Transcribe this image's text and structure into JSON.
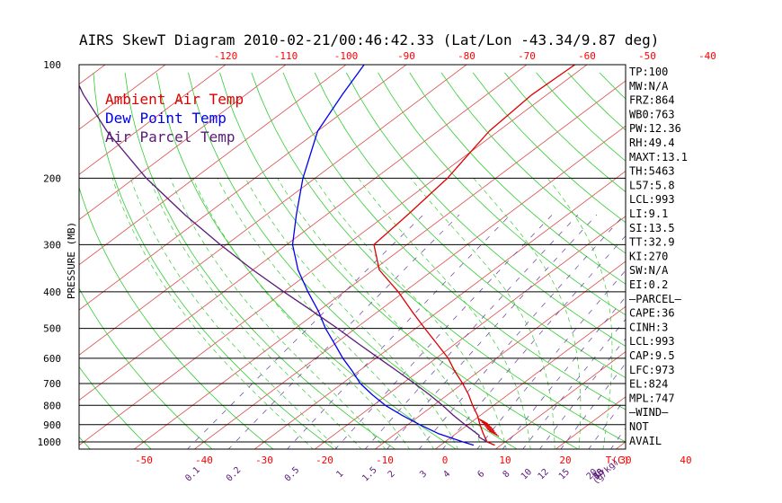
{
  "title": "AIRS SkewT Diagram 2010-02-21/00:46:42.33 (Lat/Lon -43.34/9.87 deg)",
  "ylabel": "PRESSURE (MB)",
  "xlabel_bottom_right": "T(C)",
  "mixing_unit_label": "(g/kg)",
  "colors": {
    "ambient": "#dd0000",
    "dewpoint": "#0000ee",
    "parcel": "#5a1a78",
    "isotherm": "#dd4a4a",
    "dry_adiabat": "#33cc33",
    "moist_adiabat": "#33cc33",
    "mixing_ratio": "#6a3aa0",
    "isobar": "#000000"
  },
  "chart_data": {
    "type": "line",
    "y_scale": "log",
    "y_unit": "mb",
    "x_unit": "deg C",
    "pressure_ticks": [
      "100",
      "200",
      "300",
      "400",
      "500",
      "600",
      "700",
      "800",
      "900",
      "1000"
    ],
    "top_temperature_ticks": [
      "-120",
      "-110",
      "-100",
      "-90",
      "-80",
      "-70",
      "-60",
      "-50",
      "-40"
    ],
    "bottom_temperature_ticks": [
      "-50",
      "-40",
      "-30",
      "-20",
      "-10",
      "0",
      "10",
      "20",
      "30",
      "40"
    ],
    "mixing_ratio_labels": [
      "0.1",
      "0.2",
      "0.5",
      "1",
      "1.5",
      "2",
      "3",
      "4",
      "6",
      "8",
      "10",
      "12",
      "15",
      "20",
      "25",
      "30",
      "40",
      "50"
    ],
    "legend": [
      {
        "name": "Ambient Air Temp",
        "color": "#dd0000"
      },
      {
        "name": "Dew Point Temp",
        "color": "#0000ee"
      },
      {
        "name": "Air Parcel Temp",
        "color": "#5a1a78"
      }
    ],
    "series": [
      {
        "name": "Ambient Air Temp",
        "points": [
          [
            1020,
            9.0
          ],
          [
            1000,
            7.0
          ],
          [
            950,
            4.5
          ],
          [
            900,
            2.0
          ],
          [
            850,
            -0.5
          ],
          [
            800,
            -3.5
          ],
          [
            750,
            -6.5
          ],
          [
            700,
            -10.0
          ],
          [
            650,
            -14.0
          ],
          [
            600,
            -18.0
          ],
          [
            550,
            -23.0
          ],
          [
            500,
            -28.5
          ],
          [
            450,
            -34.5
          ],
          [
            400,
            -41.0
          ],
          [
            350,
            -49.0
          ],
          [
            300,
            -55.5
          ],
          [
            250,
            -56.5
          ],
          [
            200,
            -58.0
          ],
          [
            170,
            -60.0
          ],
          [
            150,
            -61.5
          ],
          [
            120,
            -62.5
          ],
          [
            100,
            -62.0
          ]
        ]
      },
      {
        "name": "Dew Point Temp",
        "points": [
          [
            1020,
            5.5
          ],
          [
            1000,
            3.0
          ],
          [
            950,
            -3.0
          ],
          [
            900,
            -8.0
          ],
          [
            850,
            -13.0
          ],
          [
            800,
            -18.0
          ],
          [
            750,
            -22.5
          ],
          [
            700,
            -27.0
          ],
          [
            650,
            -31.0
          ],
          [
            600,
            -35.5
          ],
          [
            550,
            -40.0
          ],
          [
            500,
            -45.0
          ],
          [
            450,
            -50.0
          ],
          [
            400,
            -56.0
          ],
          [
            350,
            -62.5
          ],
          [
            300,
            -69.0
          ],
          [
            250,
            -75.0
          ],
          [
            200,
            -82.0
          ],
          [
            150,
            -90.0
          ],
          [
            120,
            -94.0
          ],
          [
            100,
            -97.0
          ]
        ]
      },
      {
        "name": "Air Parcel Temp",
        "points": [
          [
            1000,
            7.0
          ],
          [
            970,
            4.5
          ],
          [
            960,
            4.2
          ],
          [
            900,
            -0.5
          ],
          [
            850,
            -4.5
          ],
          [
            800,
            -8.5
          ],
          [
            750,
            -13.0
          ],
          [
            700,
            -18.0
          ],
          [
            650,
            -23.5
          ],
          [
            600,
            -29.5
          ],
          [
            550,
            -36.0
          ],
          [
            500,
            -43.0
          ],
          [
            450,
            -51.0
          ],
          [
            400,
            -60.0
          ],
          [
            350,
            -70.0
          ],
          [
            300,
            -81.0
          ],
          [
            250,
            -93.5
          ],
          [
            200,
            -108.0
          ],
          [
            150,
            -125.0
          ],
          [
            120,
            -137.0
          ],
          [
            100,
            -146.0
          ]
        ]
      }
    ],
    "wind_marks": [
      [
        950,
        6.5
      ],
      [
        940,
        5.8
      ],
      [
        930,
        5.2
      ],
      [
        920,
        4.6
      ],
      [
        910,
        4.0
      ],
      [
        900,
        3.3
      ],
      [
        890,
        2.6
      ],
      [
        880,
        1.9
      ]
    ]
  },
  "indices": [
    "TP:100",
    "MW:N/A",
    "FRZ:864",
    "WB0:763",
    "PW:12.36",
    "RH:49.4",
    "MAXT:13.1",
    "TH:5463",
    "L57:5.8",
    "LCL:993",
    "LI:9.1",
    "SI:13.5",
    "TT:32.9",
    "KI:270",
    "SW:N/A",
    "EI:0.2",
    "—PARCEL—",
    "CAPE:36",
    "CINH:3",
    "LCL:993",
    "CAP:9.5",
    "LFC:973",
    "EL:824",
    "MPL:747",
    "—WIND—",
    "NOT",
    "AVAIL"
  ]
}
